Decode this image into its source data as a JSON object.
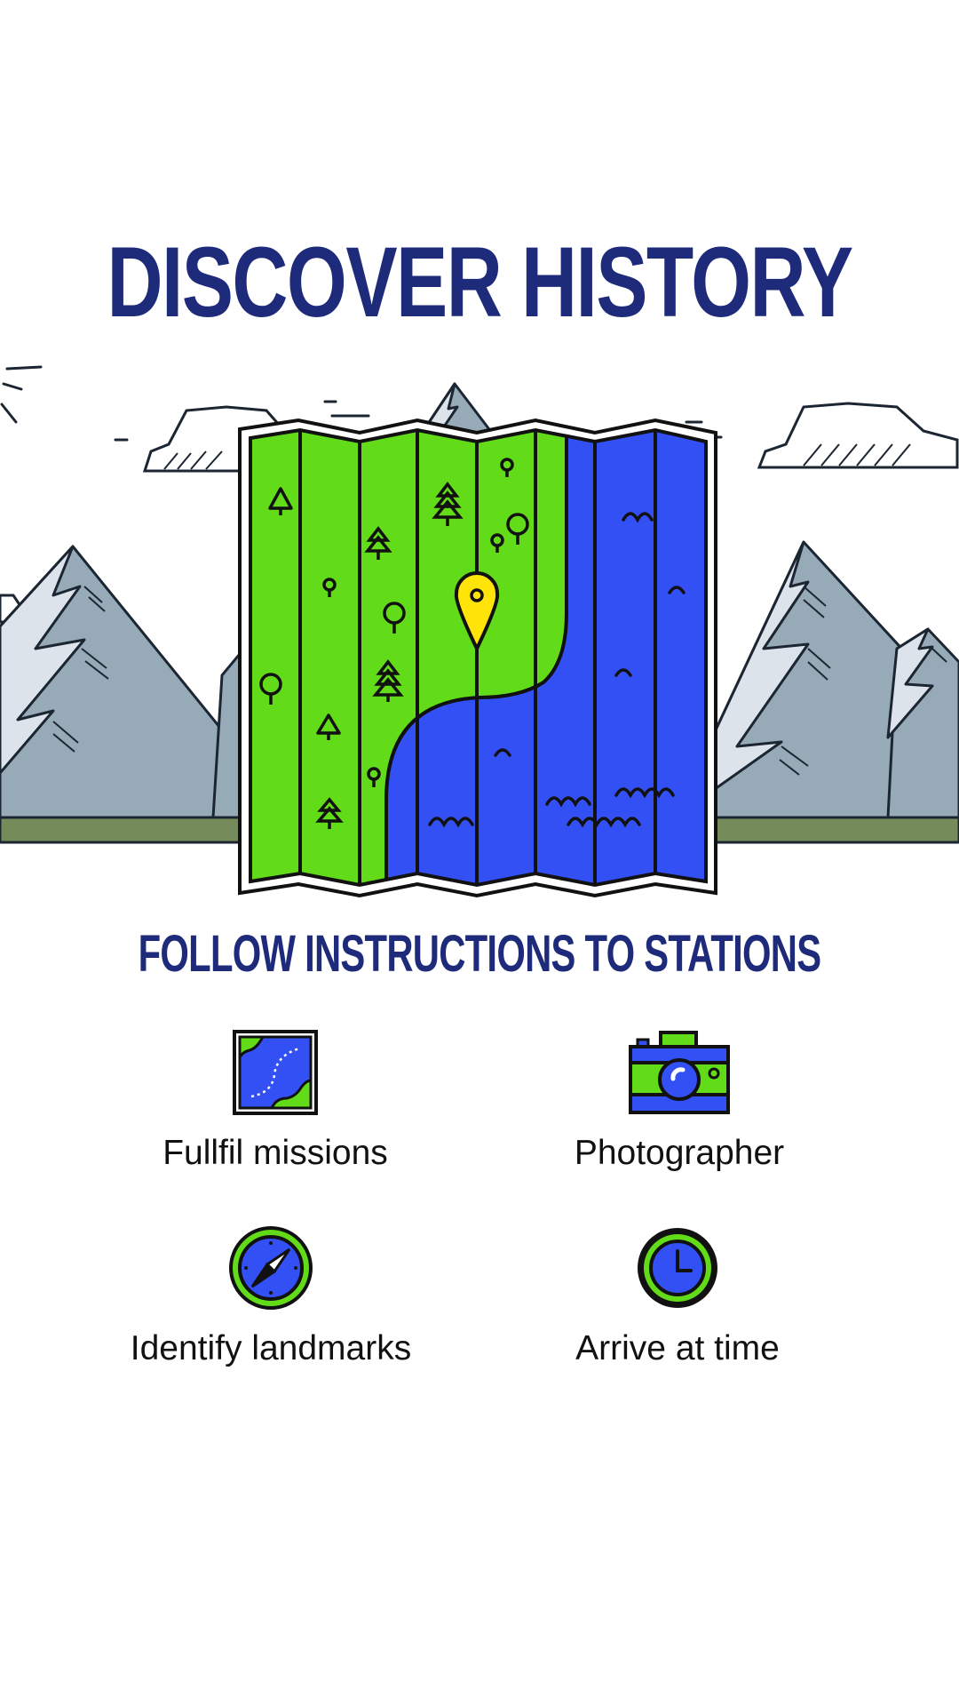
{
  "header": {
    "title": "DISCOVER HISTORY"
  },
  "instructions": {
    "title": "FOLLOW INSTRUCTIONS TO STATIONS"
  },
  "features": [
    {
      "label": "Fullfil missions",
      "icon": "map-icon"
    },
    {
      "label": "Photographer",
      "icon": "camera-icon"
    },
    {
      "label": "Identify landmarks",
      "icon": "compass-icon"
    },
    {
      "label": "Arrive at time",
      "icon": "clock-icon"
    }
  ],
  "colors": {
    "title": "#1e2a7a",
    "green": "#62db18",
    "blue": "#3350f5",
    "yellow": "#ffe40a",
    "mountain": "#97aab7",
    "ground": "#758c5a"
  }
}
